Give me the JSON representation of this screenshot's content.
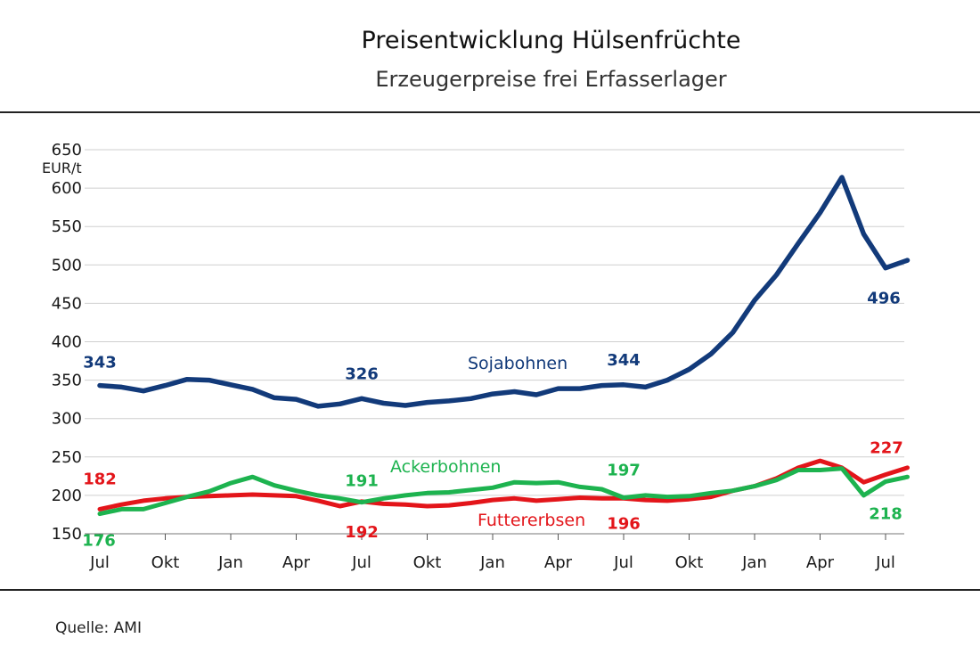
{
  "title": "Preisentwicklung Hülsenfrüchte",
  "subtitle": "Erzeugerpreise frei Erfasserlager",
  "source": "Quelle: AMI",
  "colors": {
    "Sojabohnen": "#123a7a",
    "Ackerbohnen": "#1db34f",
    "Futtererbsen": "#e3151a"
  },
  "chart_data": {
    "type": "line",
    "title": "Preisentwicklung Hülsenfrüchte",
    "subtitle": "Erzeugerpreise frei Erfasserlager",
    "ylabel": "EUR/t",
    "ylim": [
      150,
      650
    ],
    "yticks": [
      150,
      200,
      250,
      300,
      350,
      400,
      450,
      500,
      550,
      600,
      650
    ],
    "x_tick_labels": [
      "Jul",
      "Okt",
      "Jan",
      "Apr",
      "Jul",
      "Okt",
      "Jan",
      "Apr",
      "Jul",
      "Okt",
      "Jan",
      "Apr",
      "Jul"
    ],
    "x_unit": "month",
    "grid": "horizontal",
    "legend": "inline labels",
    "series": [
      {
        "name": "Sojabohnen",
        "values": [
          343,
          341,
          336,
          343,
          351,
          350,
          344,
          338,
          327,
          325,
          316,
          319,
          326,
          320,
          317,
          321,
          323,
          326,
          332,
          335,
          331,
          339,
          339,
          343,
          344,
          341,
          350,
          364,
          384,
          412,
          454,
          487,
          528,
          568,
          614,
          540,
          496,
          506
        ]
      },
      {
        "name": "Ackerbohnen",
        "values": [
          176,
          182,
          182,
          190,
          198,
          205,
          216,
          224,
          213,
          206,
          200,
          196,
          191,
          196,
          200,
          203,
          204,
          207,
          210,
          217,
          216,
          217,
          211,
          208,
          197,
          200,
          198,
          199,
          203,
          206,
          212,
          220,
          233,
          233,
          235,
          200,
          218,
          224
        ]
      },
      {
        "name": "Futtererbsen",
        "values": [
          182,
          188,
          193,
          196,
          198,
          199,
          200,
          201,
          200,
          199,
          193,
          186,
          192,
          189,
          188,
          186,
          187,
          190,
          194,
          196,
          193,
          195,
          197,
          196,
          196,
          194,
          193,
          195,
          198,
          206,
          212,
          222,
          236,
          245,
          236,
          217,
          227,
          236
        ]
      }
    ],
    "data_labels": [
      {
        "series": "Sojabohnen",
        "index": 0,
        "value": "343"
      },
      {
        "series": "Sojabohnen",
        "index": 12,
        "value": "326"
      },
      {
        "series": "Sojabohnen",
        "index": 24,
        "value": "344"
      },
      {
        "series": "Sojabohnen",
        "index": 36,
        "value": "496"
      },
      {
        "series": "Ackerbohnen",
        "index": 0,
        "value": "176"
      },
      {
        "series": "Ackerbohnen",
        "index": 12,
        "value": "191"
      },
      {
        "series": "Ackerbohnen",
        "index": 24,
        "value": "197"
      },
      {
        "series": "Ackerbohnen",
        "index": 36,
        "value": "218"
      },
      {
        "series": "Futtererbsen",
        "index": 0,
        "value": "182"
      },
      {
        "series": "Futtererbsen",
        "index": 12,
        "value": "192"
      },
      {
        "series": "Futtererbsen",
        "index": 24,
        "value": "196"
      },
      {
        "series": "Futtererbsen",
        "index": 36,
        "value": "227"
      }
    ]
  }
}
